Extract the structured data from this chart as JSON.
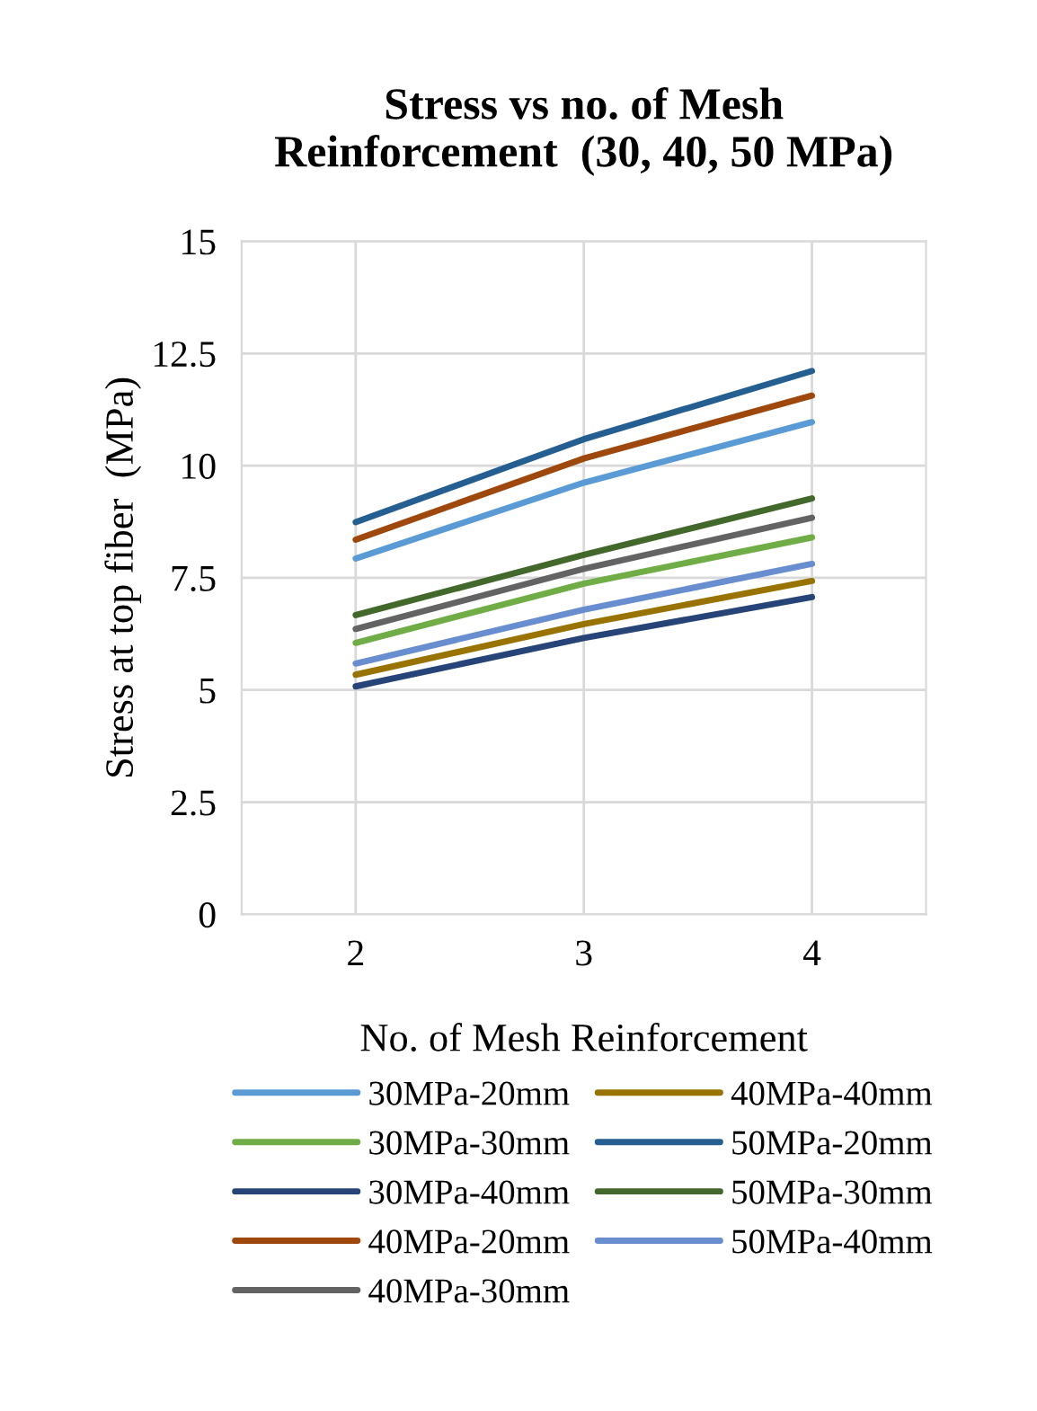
{
  "chart_data": {
    "type": "line",
    "title": "Stress vs no. of Mesh\nReinforcement  (30, 40, 50 MPa)",
    "xlabel": "No. of Mesh Reinforcement",
    "ylabel": "Stress at top fiber  (MPa)",
    "categories": [
      "2",
      "3",
      "4"
    ],
    "ylim": [
      0,
      15
    ],
    "yticks": [
      0,
      2.5,
      5,
      7.5,
      10,
      12.5,
      15
    ],
    "grid": true,
    "legend": "bottom",
    "marker": "none",
    "line_style": "solid",
    "series": [
      {
        "name": "30MPa-20mm",
        "color": "#5b9bd5",
        "values": [
          7.93,
          9.62,
          10.97
        ]
      },
      {
        "name": "30MPa-30mm",
        "color": "#70ad47",
        "values": [
          6.05,
          7.37,
          8.4
        ]
      },
      {
        "name": "30MPa-40mm",
        "color": "#264478",
        "values": [
          5.08,
          6.16,
          7.07
        ]
      },
      {
        "name": "40MPa-20mm",
        "color": "#9e480e",
        "values": [
          8.35,
          10.16,
          11.56
        ]
      },
      {
        "name": "40MPa-30mm",
        "color": "#636363",
        "values": [
          6.36,
          7.7,
          8.84
        ]
      },
      {
        "name": "40MPa-40mm",
        "color": "#997300",
        "values": [
          5.34,
          6.47,
          7.43
        ]
      },
      {
        "name": "50MPa-20mm",
        "color": "#255e91",
        "values": [
          8.74,
          10.59,
          12.11
        ]
      },
      {
        "name": "50MPa-30mm",
        "color": "#43682b",
        "values": [
          6.67,
          8.01,
          9.27
        ]
      },
      {
        "name": "50MPa-40mm",
        "color": "#698ed0",
        "values": [
          5.59,
          6.79,
          7.81
        ]
      }
    ]
  }
}
